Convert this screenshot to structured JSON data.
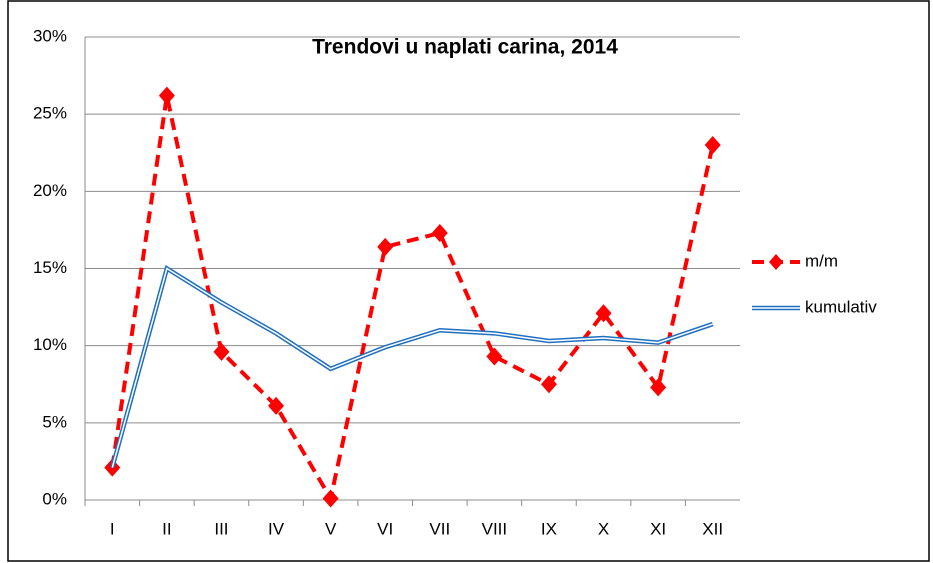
{
  "chart_data": {
    "type": "line",
    "title": "Trendovi u naplati carina, 2014",
    "categories": [
      "I",
      "II",
      "III",
      "IV",
      "V",
      "VI",
      "VII",
      "VIII",
      "IX",
      "X",
      "XI",
      "XII"
    ],
    "series": [
      {
        "name": "m/m",
        "color": "#ff0000",
        "values": [
          2.1,
          26.2,
          9.6,
          6.1,
          0.1,
          16.4,
          17.3,
          9.3,
          7.5,
          12.1,
          7.3,
          23.0
        ]
      },
      {
        "name": "kumulativ",
        "color": "#1f6fc0",
        "values": [
          2.1,
          15.0,
          12.8,
          10.8,
          8.5,
          9.9,
          11.0,
          10.8,
          10.3,
          10.5,
          10.2,
          11.4
        ]
      }
    ],
    "ylim": [
      0,
      30
    ],
    "yticks": [
      {
        "value": 0,
        "label": "0%"
      },
      {
        "value": 5,
        "label": "5%"
      },
      {
        "value": 10,
        "label": "10%"
      },
      {
        "value": 15,
        "label": "15%"
      },
      {
        "value": 20,
        "label": "20%"
      },
      {
        "value": 25,
        "label": "25%"
      },
      {
        "value": 30,
        "label": "30%"
      }
    ],
    "grid": true,
    "legend": "right"
  }
}
